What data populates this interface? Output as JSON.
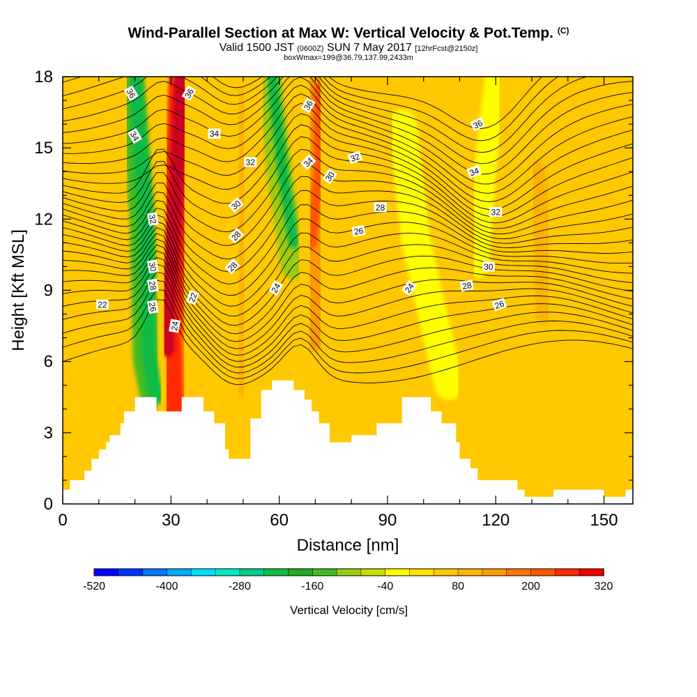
{
  "title": {
    "main": "Wind-Parallel Section at Max W: Vertical Velocity & Pot.Temp.",
    "copyright": "(C)",
    "valid_a": "Valid 1500 JST",
    "valid_z": "(0600Z)",
    "valid_b": "SUN 7 May 2017",
    "fcst": "[12hrFcst@2150z]",
    "box": "boxWmax=199@36.79,137.99,2433m"
  },
  "chart_data": {
    "type": "heatmap",
    "xlabel": "Distance [nm]",
    "ylabel": "Height [Kft MSL]",
    "xlim": [
      0,
      158
    ],
    "ylim": [
      0,
      18
    ],
    "x_ticks": [
      0,
      30,
      60,
      90,
      120,
      150
    ],
    "y_ticks": [
      0,
      3,
      6,
      9,
      12,
      15,
      18
    ],
    "colorbar": {
      "label": "Vertical Velocity [cm/s]",
      "tick_labels": [
        "-520",
        "-400",
        "-280",
        "-160",
        "-40",
        "80",
        "200",
        "320"
      ],
      "min": -520,
      "max": 320,
      "step": 40,
      "colors": [
        "#0000ff",
        "#0033ff",
        "#0077ff",
        "#00aaff",
        "#00ddff",
        "#00e8c8",
        "#00cc88",
        "#11bb44",
        "#22aa22",
        "#44bb22",
        "#99cc11",
        "#ccdd00",
        "#ffff00",
        "#ffe200",
        "#ffc800",
        "#ffb200",
        "#ff9900",
        "#ff7700",
        "#ff5500",
        "#ff2a00",
        "#ee0000",
        "#cc0022",
        "#aa0055",
        "#770077",
        "#550088"
      ]
    },
    "terrain_kft": [
      [
        0,
        0.6
      ],
      [
        2,
        0.6
      ],
      [
        2,
        1.0
      ],
      [
        6,
        1.0
      ],
      [
        6,
        1.4
      ],
      [
        8,
        1.4
      ],
      [
        8,
        1.9
      ],
      [
        10,
        1.9
      ],
      [
        10,
        2.3
      ],
      [
        12,
        2.3
      ],
      [
        12,
        2.6
      ],
      [
        13,
        2.6
      ],
      [
        13,
        2.9
      ],
      [
        16,
        2.9
      ],
      [
        16,
        3.4
      ],
      [
        17,
        3.4
      ],
      [
        17,
        3.9
      ],
      [
        20,
        3.9
      ],
      [
        20,
        4.5
      ],
      [
        26,
        4.5
      ],
      [
        26,
        3.9
      ],
      [
        33,
        3.9
      ],
      [
        33,
        4.5
      ],
      [
        39,
        4.5
      ],
      [
        39,
        3.9
      ],
      [
        42,
        3.9
      ],
      [
        42,
        3.4
      ],
      [
        45,
        3.4
      ],
      [
        45,
        2.3
      ],
      [
        46,
        2.3
      ],
      [
        46,
        1.9
      ],
      [
        52,
        1.9
      ],
      [
        52,
        3.6
      ],
      [
        55,
        3.6
      ],
      [
        55,
        4.8
      ],
      [
        58,
        4.8
      ],
      [
        58,
        5.2
      ],
      [
        64,
        5.2
      ],
      [
        64,
        4.8
      ],
      [
        67,
        4.8
      ],
      [
        67,
        4.4
      ],
      [
        69,
        4.4
      ],
      [
        69,
        3.9
      ],
      [
        71,
        3.9
      ],
      [
        71,
        3.4
      ],
      [
        74,
        3.4
      ],
      [
        74,
        2.6
      ],
      [
        80,
        2.6
      ],
      [
        80,
        2.9
      ],
      [
        87,
        2.9
      ],
      [
        87,
        3.4
      ],
      [
        94,
        3.4
      ],
      [
        94,
        4.5
      ],
      [
        102,
        4.5
      ],
      [
        102,
        3.9
      ],
      [
        105,
        3.9
      ],
      [
        105,
        3.4
      ],
      [
        109,
        3.4
      ],
      [
        109,
        2.6
      ],
      [
        110,
        2.6
      ],
      [
        110,
        1.9
      ],
      [
        113,
        1.9
      ],
      [
        113,
        1.5
      ],
      [
        115,
        1.5
      ],
      [
        115,
        1.0
      ],
      [
        126,
        1.0
      ],
      [
        126,
        0.6
      ],
      [
        128,
        0.6
      ],
      [
        128,
        0.3
      ],
      [
        136,
        0.3
      ],
      [
        136,
        0.6
      ],
      [
        150,
        0.6
      ],
      [
        150,
        0.3
      ],
      [
        156,
        0.3
      ],
      [
        156,
        0.6
      ],
      [
        158,
        0.6
      ]
    ],
    "w_features": [
      {
        "sign": "negative",
        "value": -220,
        "path": [
          [
            20,
            18
          ],
          [
            23,
            12
          ],
          [
            24,
            6
          ],
          [
            26,
            4.5
          ]
        ],
        "width_nm": 4
      },
      {
        "sign": "negative",
        "value": -140,
        "path": [
          [
            19,
            18
          ],
          [
            22,
            12
          ],
          [
            23,
            6
          ],
          [
            25,
            4.5
          ]
        ],
        "width_nm": 7
      },
      {
        "sign": "positive",
        "value": 320,
        "path": [
          [
            33,
            18
          ],
          [
            31,
            12
          ],
          [
            29,
            8
          ],
          [
            29,
            6.5
          ]
        ],
        "width_nm": 4
      },
      {
        "sign": "positive",
        "value": 240,
        "path": [
          [
            33,
            18
          ],
          [
            31,
            12
          ],
          [
            29.5,
            7
          ],
          [
            30,
            4
          ]
        ],
        "width_nm": 7
      },
      {
        "sign": "positive",
        "value": 120,
        "path": [
          [
            33,
            18
          ],
          [
            31.5,
            12
          ],
          [
            30,
            7
          ],
          [
            30,
            4
          ]
        ],
        "width_nm": 10
      },
      {
        "sign": "negative",
        "value": -220,
        "path": [
          [
            58,
            18
          ],
          [
            61,
            14
          ],
          [
            64,
            11
          ]
        ],
        "width_nm": 3
      },
      {
        "sign": "negative",
        "value": -120,
        "path": [
          [
            57,
            18
          ],
          [
            60,
            14
          ],
          [
            64,
            10
          ]
        ],
        "width_nm": 7
      },
      {
        "sign": "positive",
        "value": 200,
        "path": [
          [
            71,
            17.5
          ],
          [
            71,
            14
          ],
          [
            69,
            11
          ]
        ],
        "width_nm": 3
      },
      {
        "sign": "positive",
        "value": 120,
        "path": [
          [
            71,
            18
          ],
          [
            71,
            14
          ],
          [
            69,
            10
          ],
          [
            70,
            7
          ]
        ],
        "width_nm": 7
      },
      {
        "sign": "positive",
        "value": 80,
        "path": [
          [
            49,
            17
          ],
          [
            50,
            12
          ],
          [
            50,
            8
          ],
          [
            50,
            5
          ]
        ],
        "width_nm": 7
      },
      {
        "sign": "positive",
        "value": 80,
        "path": [
          [
            131,
            14
          ],
          [
            133,
            11
          ],
          [
            134,
            8
          ]
        ],
        "width_nm": 6
      },
      {
        "sign": "negative",
        "value": -40,
        "path": [
          [
            94,
            16
          ],
          [
            98,
            11
          ],
          [
            104,
            7
          ],
          [
            107,
            5
          ]
        ],
        "width_nm": 8
      },
      {
        "sign": "negative",
        "value": -20,
        "path": [
          [
            120,
            18
          ],
          [
            117,
            14
          ],
          [
            115,
            10
          ]
        ],
        "width_nm": 6
      }
    ],
    "theta_labels": [
      {
        "x": 19,
        "y": 17.3,
        "label": "36",
        "angle": 60
      },
      {
        "x": 35,
        "y": 17.3,
        "label": "36",
        "angle": -60
      },
      {
        "x": 20,
        "y": 15.5,
        "label": "34",
        "angle": 60
      },
      {
        "x": 42,
        "y": 15.6,
        "label": "34",
        "angle": 0
      },
      {
        "x": 52,
        "y": 14.4,
        "label": "32",
        "angle": 0
      },
      {
        "x": 68,
        "y": 16.8,
        "label": "36",
        "angle": -60
      },
      {
        "x": 68,
        "y": 14.4,
        "label": "34",
        "angle": -45
      },
      {
        "x": 81,
        "y": 14.6,
        "label": "32",
        "angle": -20
      },
      {
        "x": 74,
        "y": 13.8,
        "label": "30",
        "angle": -55
      },
      {
        "x": 115,
        "y": 16.0,
        "label": "36",
        "angle": -25
      },
      {
        "x": 114,
        "y": 14.0,
        "label": "34",
        "angle": -20
      },
      {
        "x": 120,
        "y": 12.3,
        "label": "32",
        "angle": 0
      },
      {
        "x": 88,
        "y": 12.5,
        "label": "28",
        "angle": 0
      },
      {
        "x": 82,
        "y": 11.5,
        "label": "26",
        "angle": -10
      },
      {
        "x": 48,
        "y": 12.6,
        "label": "30",
        "angle": -40
      },
      {
        "x": 48,
        "y": 11.3,
        "label": "28",
        "angle": -45
      },
      {
        "x": 47,
        "y": 10.0,
        "label": "28",
        "angle": -45
      },
      {
        "x": 25,
        "y": 12.0,
        "label": "32",
        "angle": 80
      },
      {
        "x": 25,
        "y": 10.0,
        "label": "30",
        "angle": 80
      },
      {
        "x": 25,
        "y": 9.2,
        "label": "28",
        "angle": 80
      },
      {
        "x": 25,
        "y": 8.3,
        "label": "26",
        "angle": 80
      },
      {
        "x": 31,
        "y": 7.5,
        "label": "24",
        "angle": -80
      },
      {
        "x": 36,
        "y": 8.7,
        "label": "22",
        "angle": -70
      },
      {
        "x": 11,
        "y": 8.4,
        "label": "22",
        "angle": 0
      },
      {
        "x": 59,
        "y": 9.1,
        "label": "24",
        "angle": -60
      },
      {
        "x": 96,
        "y": 9.1,
        "label": "24",
        "angle": -55
      },
      {
        "x": 118,
        "y": 10.0,
        "label": "30",
        "angle": 0
      },
      {
        "x": 112,
        "y": 9.2,
        "label": "28",
        "angle": -10
      },
      {
        "x": 121,
        "y": 8.4,
        "label": "26",
        "angle": -20
      }
    ]
  }
}
